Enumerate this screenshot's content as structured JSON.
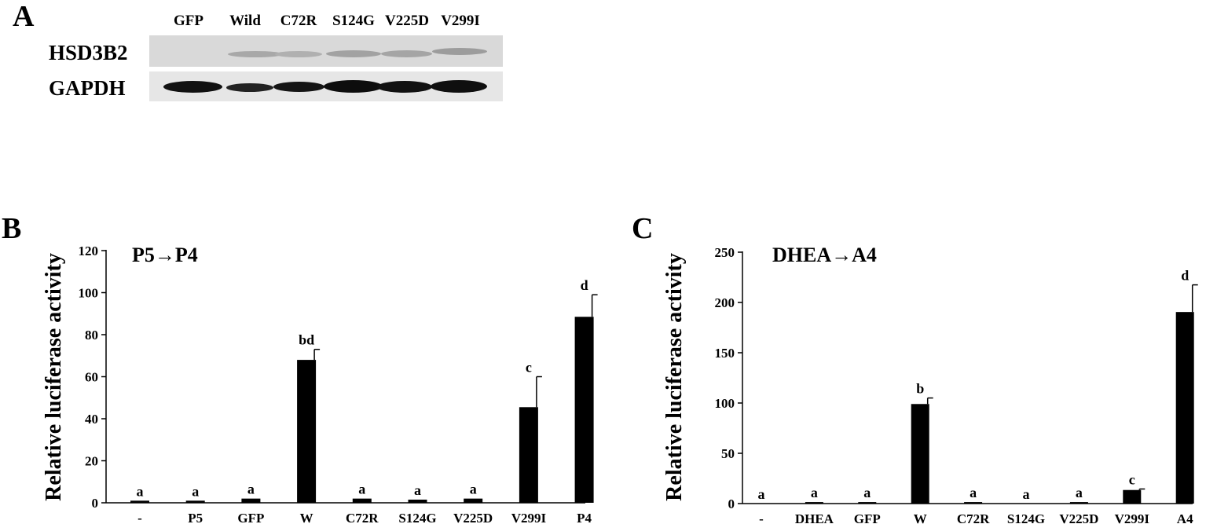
{
  "figure": {
    "panel_a": {
      "letter": "A",
      "lanes": [
        "GFP",
        "Wild",
        "C72R",
        "S124G",
        "V225D",
        "V299I"
      ],
      "rows": [
        "HSD3B2",
        "GAPDH"
      ]
    },
    "panel_b": {
      "letter": "B"
    },
    "panel_c": {
      "letter": "C"
    }
  },
  "chart_data": [
    {
      "type": "bar",
      "title": "P5→P4",
      "xlabel": "",
      "ylabel": "Relative luciferase activity",
      "ylim": [
        0,
        120
      ],
      "yticks": [
        0,
        20,
        40,
        60,
        80,
        100,
        120
      ],
      "categories": [
        "-",
        "P5",
        "GFP",
        "W",
        "C72R",
        "S124G",
        "V225D",
        "V299I",
        "P4"
      ],
      "values": [
        1,
        1,
        2,
        68,
        2,
        1.5,
        2,
        45.5,
        88.5
      ],
      "errors": [
        0,
        0,
        0,
        5,
        0,
        0,
        0,
        14.5,
        10.5
      ],
      "significance_letters": [
        "a",
        "a",
        "a",
        "bd",
        "a",
        "a",
        "a",
        "c",
        "d"
      ],
      "bar_color": "#000000"
    },
    {
      "type": "bar",
      "title": "DHEA→A4",
      "xlabel": "",
      "ylabel": "Relative luciferase activity",
      "ylim": [
        0,
        250
      ],
      "yticks": [
        0,
        50,
        100,
        150,
        200,
        250
      ],
      "categories": [
        "-",
        "DHEA",
        "GFP",
        "W",
        "C72R",
        "S124G",
        "V225D",
        "V299I",
        "A4"
      ],
      "values": [
        0,
        1.5,
        1.5,
        99,
        1.5,
        0,
        1.5,
        13.5,
        190.5
      ],
      "errors": [
        0,
        0,
        0,
        6,
        0,
        0,
        0,
        1,
        27
      ],
      "significance_letters": [
        "a",
        "a",
        "a",
        "b",
        "a",
        "a",
        "a",
        "c",
        "d"
      ],
      "bar_color": "#000000"
    }
  ]
}
